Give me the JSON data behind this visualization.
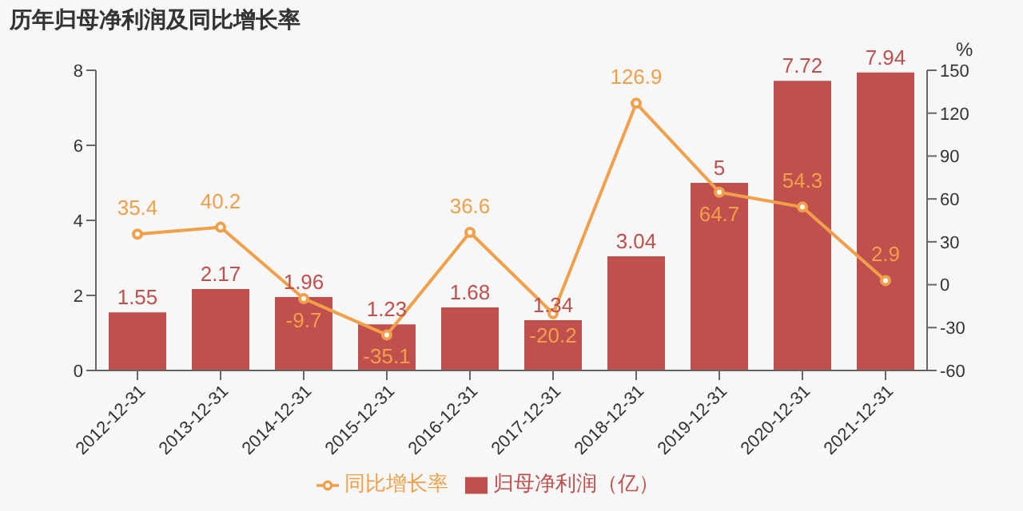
{
  "chart_data": {
    "type": "bar",
    "title": "历年归母净利润及同比增长率",
    "y2label": "%",
    "categories": [
      "2012-12-31",
      "2013-12-31",
      "2014-12-31",
      "2015-12-31",
      "2016-12-31",
      "2017-12-31",
      "2018-12-31",
      "2019-12-31",
      "2020-12-31",
      "2021-12-31"
    ],
    "series": [
      {
        "name": "归母净利润（亿）",
        "color": "#c0504d",
        "values": [
          1.55,
          2.17,
          1.96,
          1.23,
          1.68,
          1.34,
          3.04,
          5,
          7.72,
          7.94
        ]
      },
      {
        "name": "同比增长率",
        "type": "line",
        "axis": "y2",
        "color": "#f0a04b",
        "values": [
          35.4,
          40.2,
          -9.7,
          -35.1,
          36.6,
          -20.2,
          126.9,
          64.7,
          54.3,
          2.9
        ]
      }
    ],
    "ylim": [
      0,
      8
    ],
    "yticks": [
      0,
      2,
      4,
      6,
      8
    ],
    "y2lim": [
      -60,
      150
    ],
    "y2ticks": [
      -60,
      -30,
      0,
      30,
      60,
      90,
      120,
      150
    ],
    "data_labels": true,
    "grid": false,
    "legend": "bottom",
    "marker": "circle"
  }
}
